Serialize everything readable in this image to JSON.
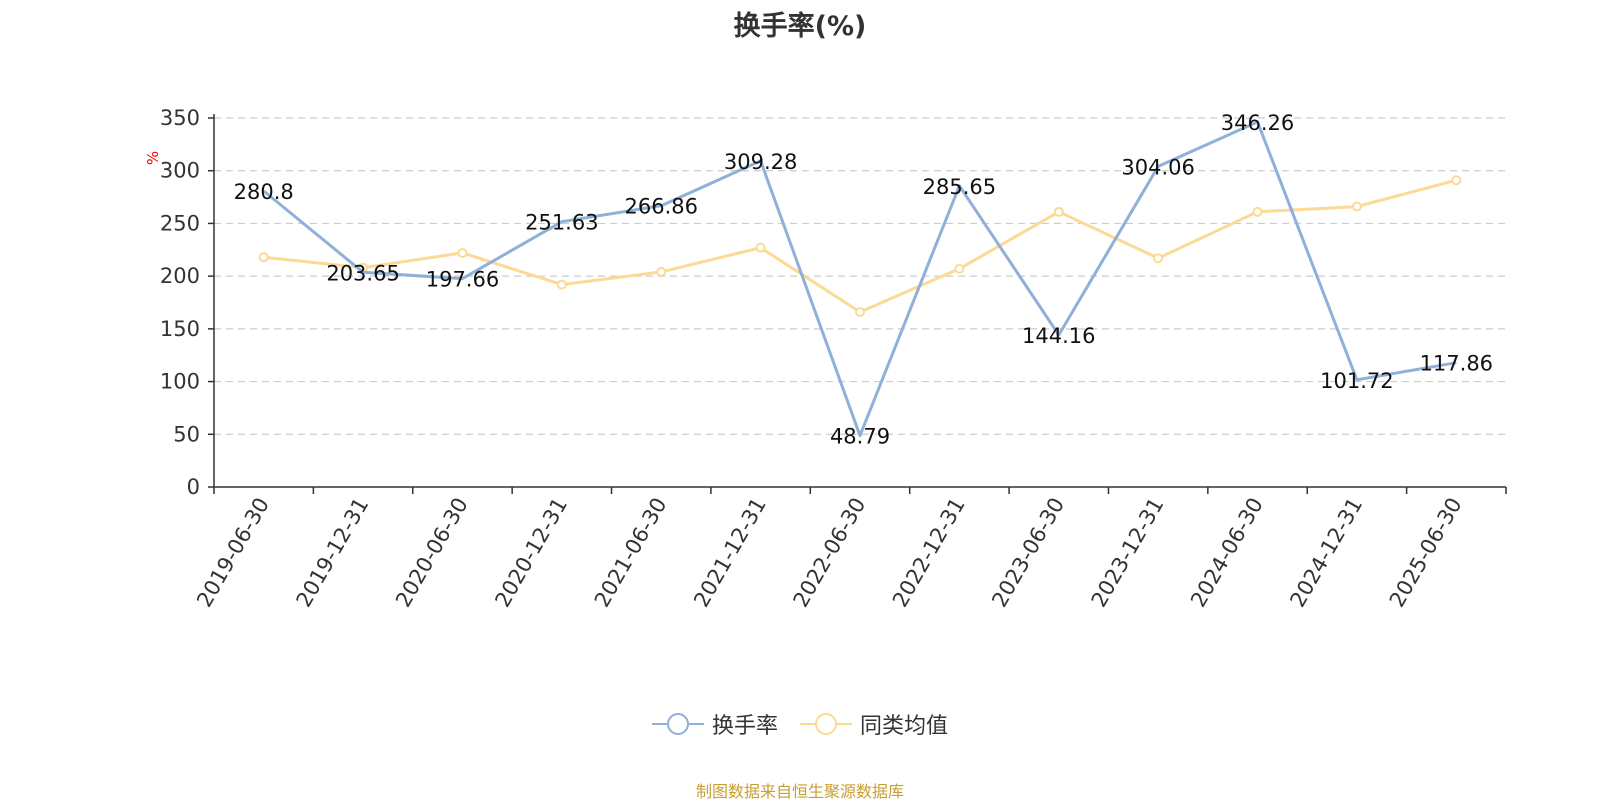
{
  "chart_data": {
    "type": "line",
    "title": "换手率(%)",
    "ylabel": "%",
    "ylim": [
      0,
      350
    ],
    "yticks": [
      0,
      50,
      100,
      150,
      200,
      250,
      300,
      350
    ],
    "categories": [
      "2019-06-30",
      "2019-12-31",
      "2020-06-30",
      "2020-12-31",
      "2021-06-30",
      "2021-12-31",
      "2022-06-30",
      "2022-12-31",
      "2023-06-30",
      "2023-12-31",
      "2024-06-30",
      "2024-12-31",
      "2025-06-30"
    ],
    "series": [
      {
        "name": "换手率",
        "color": "#8eb0d9",
        "values": [
          280.8,
          203.65,
          197.66,
          251.63,
          266.86,
          309.28,
          48.79,
          285.65,
          144.16,
          304.06,
          346.26,
          101.72,
          117.86
        ],
        "labels": [
          "280.8",
          "203.65",
          "197.66",
          "251.63",
          "266.86",
          "309.28",
          "48.79",
          "285.65",
          "144.16",
          "304.06",
          "346.26",
          "101.72",
          "117.86"
        ]
      },
      {
        "name": "同类均值",
        "color": "#fcd995",
        "values": [
          218,
          208,
          222,
          192,
          204,
          227,
          166,
          207,
          261,
          217,
          261,
          266,
          291
        ]
      }
    ],
    "grid": true,
    "legend_position": "bottom"
  },
  "source_note": "制图数据来自恒生聚源数据库"
}
